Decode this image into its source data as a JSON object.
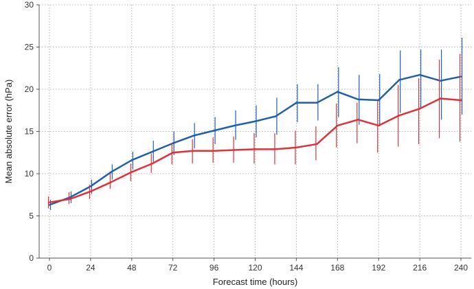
{
  "chart_data": {
    "type": "line",
    "xlabel": "Forecast time (hours)",
    "ylabel": "Mean absolute error (hPa)",
    "xlim": [
      -6,
      246
    ],
    "ylim": [
      0,
      30
    ],
    "x_ticks": [
      0,
      24,
      48,
      72,
      96,
      120,
      144,
      168,
      192,
      216,
      240
    ],
    "y_ticks": [
      0,
      5,
      10,
      15,
      20,
      25,
      30
    ],
    "x_tick_labels": [
      "0",
      "24",
      "48",
      "72",
      "96",
      "120",
      "144",
      "168",
      "192",
      "216",
      "240"
    ],
    "y_tick_labels": [
      "0",
      "5",
      "10",
      "15",
      "20",
      "25",
      "30"
    ],
    "grid": true,
    "x": [
      0,
      12,
      24,
      36,
      48,
      60,
      72,
      84,
      96,
      108,
      120,
      132,
      144,
      156,
      168,
      180,
      192,
      204,
      216,
      228,
      240
    ],
    "series": [
      {
        "color": "#1f5fa8",
        "values": [
          6.3,
          7.2,
          8.5,
          10.2,
          11.6,
          12.6,
          13.6,
          14.5,
          15.1,
          15.7,
          16.2,
          16.8,
          18.4,
          18.4,
          19.7,
          18.8,
          18.7,
          21.1,
          21.7,
          21.0,
          21.5
        ],
        "error_low": [
          5.7,
          6.5,
          7.6,
          9.3,
          10.5,
          11.4,
          12.2,
          13.0,
          13.5,
          14.0,
          14.3,
          14.6,
          16.1,
          16.3,
          16.7,
          15.8,
          15.6,
          17.2,
          17.7,
          16.4,
          17.0
        ],
        "error_high": [
          6.9,
          7.9,
          9.3,
          11.1,
          12.6,
          13.9,
          15.0,
          16.0,
          16.7,
          17.5,
          18.1,
          19.0,
          20.6,
          20.6,
          22.6,
          21.7,
          21.8,
          24.6,
          24.7,
          24.7,
          26.1
        ]
      },
      {
        "color": "#e0303a",
        "values": [
          6.6,
          7.0,
          7.9,
          9.0,
          10.2,
          11.2,
          12.5,
          12.7,
          12.7,
          12.8,
          12.9,
          12.9,
          13.1,
          13.5,
          15.7,
          16.4,
          15.7,
          16.9,
          17.7,
          18.9,
          18.7
        ],
        "error_low": [
          5.9,
          6.4,
          7.0,
          8.2,
          9.1,
          10.1,
          11.1,
          11.2,
          11.3,
          11.3,
          11.2,
          11.1,
          11.1,
          11.6,
          13.1,
          13.6,
          12.5,
          13.2,
          13.5,
          14.2,
          13.8
        ],
        "error_high": [
          7.3,
          7.8,
          8.7,
          10.0,
          11.2,
          12.4,
          13.6,
          14.1,
          14.3,
          14.4,
          14.8,
          14.8,
          15.1,
          15.6,
          18.3,
          18.4,
          18.6,
          20.5,
          21.3,
          23.5,
          24.2
        ]
      }
    ]
  }
}
